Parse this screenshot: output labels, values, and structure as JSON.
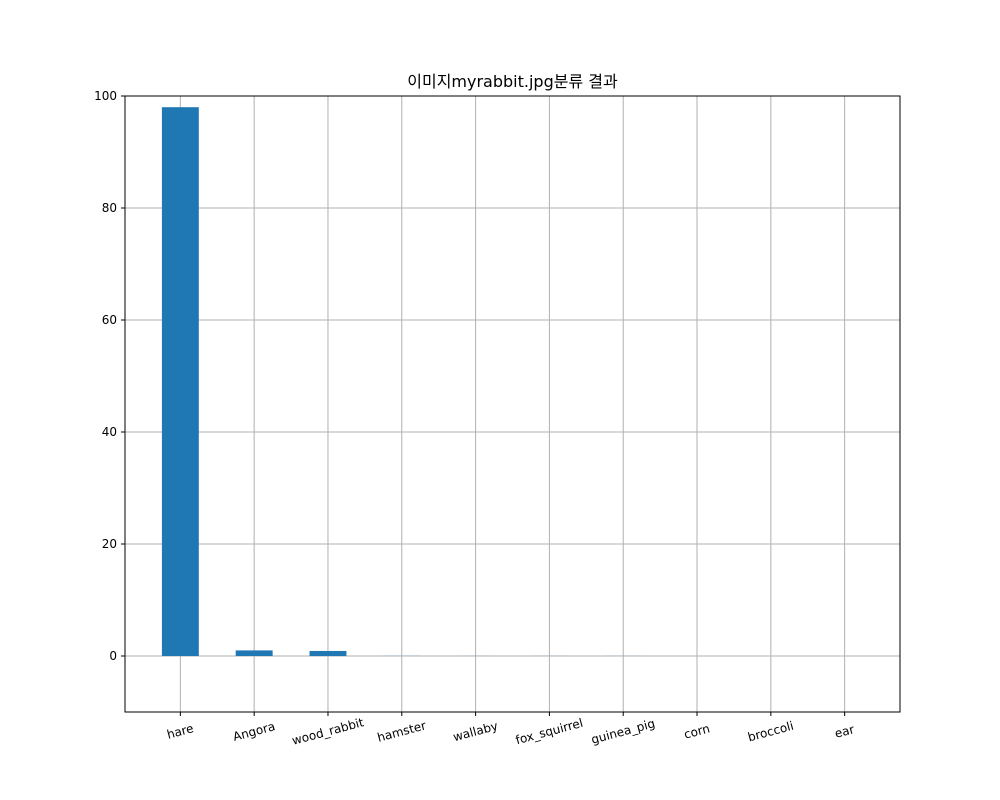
{
  "chart_data": {
    "type": "bar",
    "title": "이미지myrabbit.jpg분류 결과",
    "xlabel": "",
    "ylabel": "",
    "categories": [
      "hare",
      "Angora",
      "wood_rabbit",
      "hamster",
      "wallaby",
      "fox_squirrel",
      "guinea_pig",
      "corn",
      "broccoli",
      "ear"
    ],
    "values": [
      98.0,
      1.0,
      0.9,
      0.02,
      0.01,
      0.01,
      0.01,
      0.0,
      0.0,
      0.0
    ],
    "ylim": [
      -10,
      100
    ],
    "yticks": [
      0,
      20,
      40,
      60,
      80,
      100
    ],
    "xtick_rotation": -15,
    "grid": true,
    "legend": "none",
    "bar_color": "#1f77b4",
    "grid_color": "#b0b0b0"
  }
}
